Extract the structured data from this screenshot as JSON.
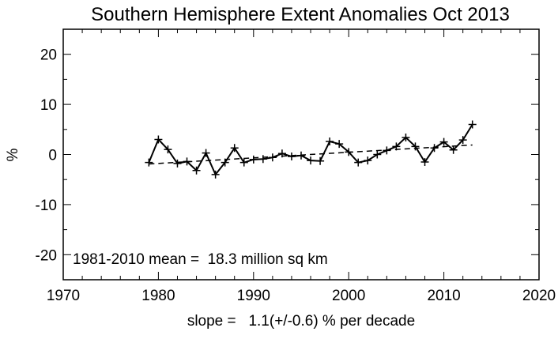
{
  "chart_data": {
    "type": "line",
    "title": "Southern Hemisphere Extent Anomalies Oct 2013",
    "xlabel": "",
    "ylabel": "%",
    "xlim": [
      1970,
      2020
    ],
    "ylim": [
      -25,
      25
    ],
    "x_ticks": [
      1970,
      1980,
      1990,
      2000,
      2010,
      2020
    ],
    "y_ticks": [
      -20,
      -10,
      0,
      10,
      20
    ],
    "grid": false,
    "legend": "none",
    "series": [
      {
        "style": "solid-with-plus-markers",
        "color": "#000000",
        "x": [
          1979,
          1980,
          1981,
          1982,
          1983,
          1984,
          1985,
          1986,
          1987,
          1988,
          1989,
          1990,
          1991,
          1992,
          1993,
          1994,
          1995,
          1996,
          1997,
          1998,
          1999,
          2000,
          2001,
          2002,
          2003,
          2004,
          2005,
          2006,
          2007,
          2008,
          2009,
          2010,
          2011,
          2012,
          2013
        ],
        "y": [
          -1.6,
          3.0,
          1.0,
          -1.8,
          -1.4,
          -3.2,
          0.3,
          -4.0,
          -1.6,
          1.3,
          -1.6,
          -1.0,
          -0.9,
          -0.6,
          0.2,
          -0.4,
          -0.2,
          -1.2,
          -1.3,
          2.6,
          2.1,
          0.5,
          -1.6,
          -1.2,
          0.0,
          0.8,
          1.6,
          3.4,
          1.6,
          -1.5,
          1.3,
          2.5,
          0.9,
          2.9,
          6.0
        ]
      },
      {
        "style": "dashed-trend",
        "color": "#000000",
        "x": [
          1979,
          2013
        ],
        "y": [
          -1.9,
          1.9
        ]
      }
    ],
    "annotation": "1981-2010 mean =  18.3 million sq km",
    "footer": "slope =   1.1(+/-0.6) % per decade"
  }
}
